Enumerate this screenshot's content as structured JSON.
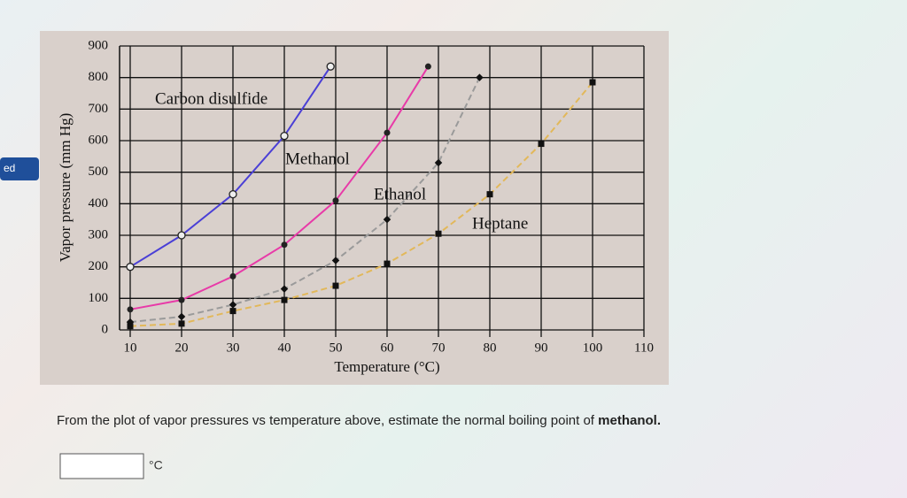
{
  "side_tab": "ed",
  "chart_data": {
    "type": "line",
    "x_label": "Temperature (°C)",
    "y_label": "Vapor pressure (mm Hg)",
    "xlim": [
      10,
      110
    ],
    "xticks": [
      10,
      20,
      30,
      40,
      50,
      60,
      70,
      80,
      90,
      100,
      110
    ],
    "ylim": [
      0,
      900
    ],
    "yticks": [
      0,
      100,
      200,
      300,
      400,
      500,
      600,
      700,
      800,
      900
    ],
    "grid": true,
    "series": [
      {
        "name": "Carbon disulfide",
        "color": "#4a3fd6",
        "marker": "circle",
        "dashed": false,
        "x": [
          10,
          20,
          30,
          40,
          49
        ],
        "values": [
          200,
          300,
          430,
          615,
          835
        ]
      },
      {
        "name": "Methanol",
        "color": "#e83aa8",
        "marker": "dot",
        "dashed": false,
        "x": [
          10,
          20,
          30,
          40,
          50,
          60,
          68
        ],
        "values": [
          65,
          95,
          170,
          270,
          410,
          625,
          835
        ]
      },
      {
        "name": "Ethanol",
        "color": "#9a9a9a",
        "marker": "diamond",
        "dashed": true,
        "x": [
          10,
          20,
          30,
          40,
          50,
          60,
          70,
          78
        ],
        "values": [
          25,
          42,
          80,
          130,
          220,
          350,
          530,
          800
        ]
      },
      {
        "name": "Heptane",
        "color": "#e2b85a",
        "marker": "square",
        "dashed": true,
        "x": [
          10,
          20,
          30,
          40,
          50,
          60,
          70,
          80,
          90,
          100
        ],
        "values": [
          12,
          20,
          60,
          95,
          140,
          210,
          305,
          430,
          590,
          785
        ]
      }
    ]
  },
  "question": {
    "prefix": "From the plot of vapor pressures vs temperature above, estimate the normal boiling point of ",
    "emphasis": "methanol.",
    "unit": "°C"
  }
}
